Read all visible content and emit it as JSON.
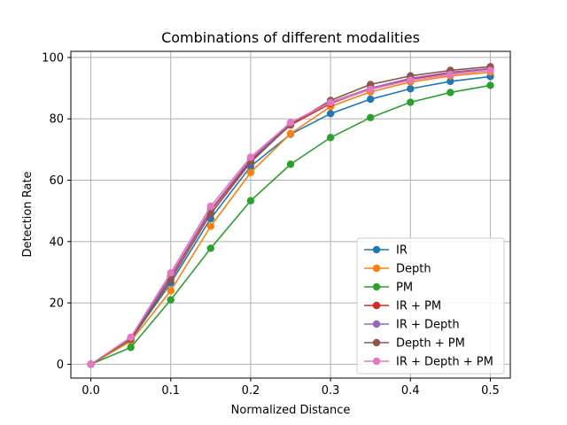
{
  "chart_data": {
    "type": "line",
    "title": "Combinations of different modalities",
    "xlabel": "Normalized Distance",
    "ylabel": "Detection Rate",
    "xlim": [
      -0.025,
      0.525
    ],
    "ylim": [
      -4.5,
      102
    ],
    "xticks": [
      0.0,
      0.1,
      0.2,
      0.3,
      0.4,
      0.5
    ],
    "xtick_labels": [
      "0.0",
      "0.1",
      "0.2",
      "0.3",
      "0.4",
      "0.5"
    ],
    "yticks": [
      0,
      20,
      40,
      60,
      80,
      100
    ],
    "ytick_labels": [
      "0",
      "20",
      "40",
      "60",
      "80",
      "100"
    ],
    "grid": true,
    "legend_position": "lower-right",
    "x": [
      0.0,
      0.05,
      0.1,
      0.15,
      0.2,
      0.25,
      0.3,
      0.35,
      0.4,
      0.45,
      0.5
    ],
    "series": [
      {
        "name": "IR",
        "color": "#1f77b4",
        "values": [
          0,
          8.0,
          26.5,
          47.5,
          64.5,
          75.0,
          81.7,
          86.4,
          89.8,
          92.2,
          93.8
        ]
      },
      {
        "name": "Depth",
        "color": "#ff7f0e",
        "values": [
          0,
          7.5,
          24.0,
          45.0,
          62.5,
          75.2,
          84.0,
          88.8,
          92.0,
          94.0,
          95.2
        ]
      },
      {
        "name": "PM",
        "color": "#2ca02c",
        "values": [
          0,
          5.5,
          21.0,
          37.8,
          53.3,
          65.2,
          73.9,
          80.4,
          85.4,
          88.6,
          90.9
        ]
      },
      {
        "name": "IR + PM",
        "color": "#d62728",
        "values": [
          0,
          8.4,
          28.5,
          50.0,
          66.3,
          78.0,
          85.0,
          89.7,
          92.9,
          95.0,
          96.3
        ]
      },
      {
        "name": "IR + Depth",
        "color": "#9467bd",
        "values": [
          0,
          8.5,
          28.8,
          50.4,
          66.8,
          78.4,
          85.4,
          90.0,
          93.2,
          95.2,
          96.4
        ]
      },
      {
        "name": "Depth + PM",
        "color": "#8c564b",
        "values": [
          0,
          8.2,
          27.5,
          49.0,
          65.8,
          78.2,
          86.0,
          91.2,
          94.0,
          95.8,
          97.0
        ]
      },
      {
        "name": "IR + Depth + PM",
        "color": "#e377c2",
        "values": [
          0,
          8.8,
          29.8,
          51.5,
          67.5,
          78.8,
          85.3,
          89.6,
          92.6,
          94.5,
          95.8
        ]
      }
    ]
  }
}
